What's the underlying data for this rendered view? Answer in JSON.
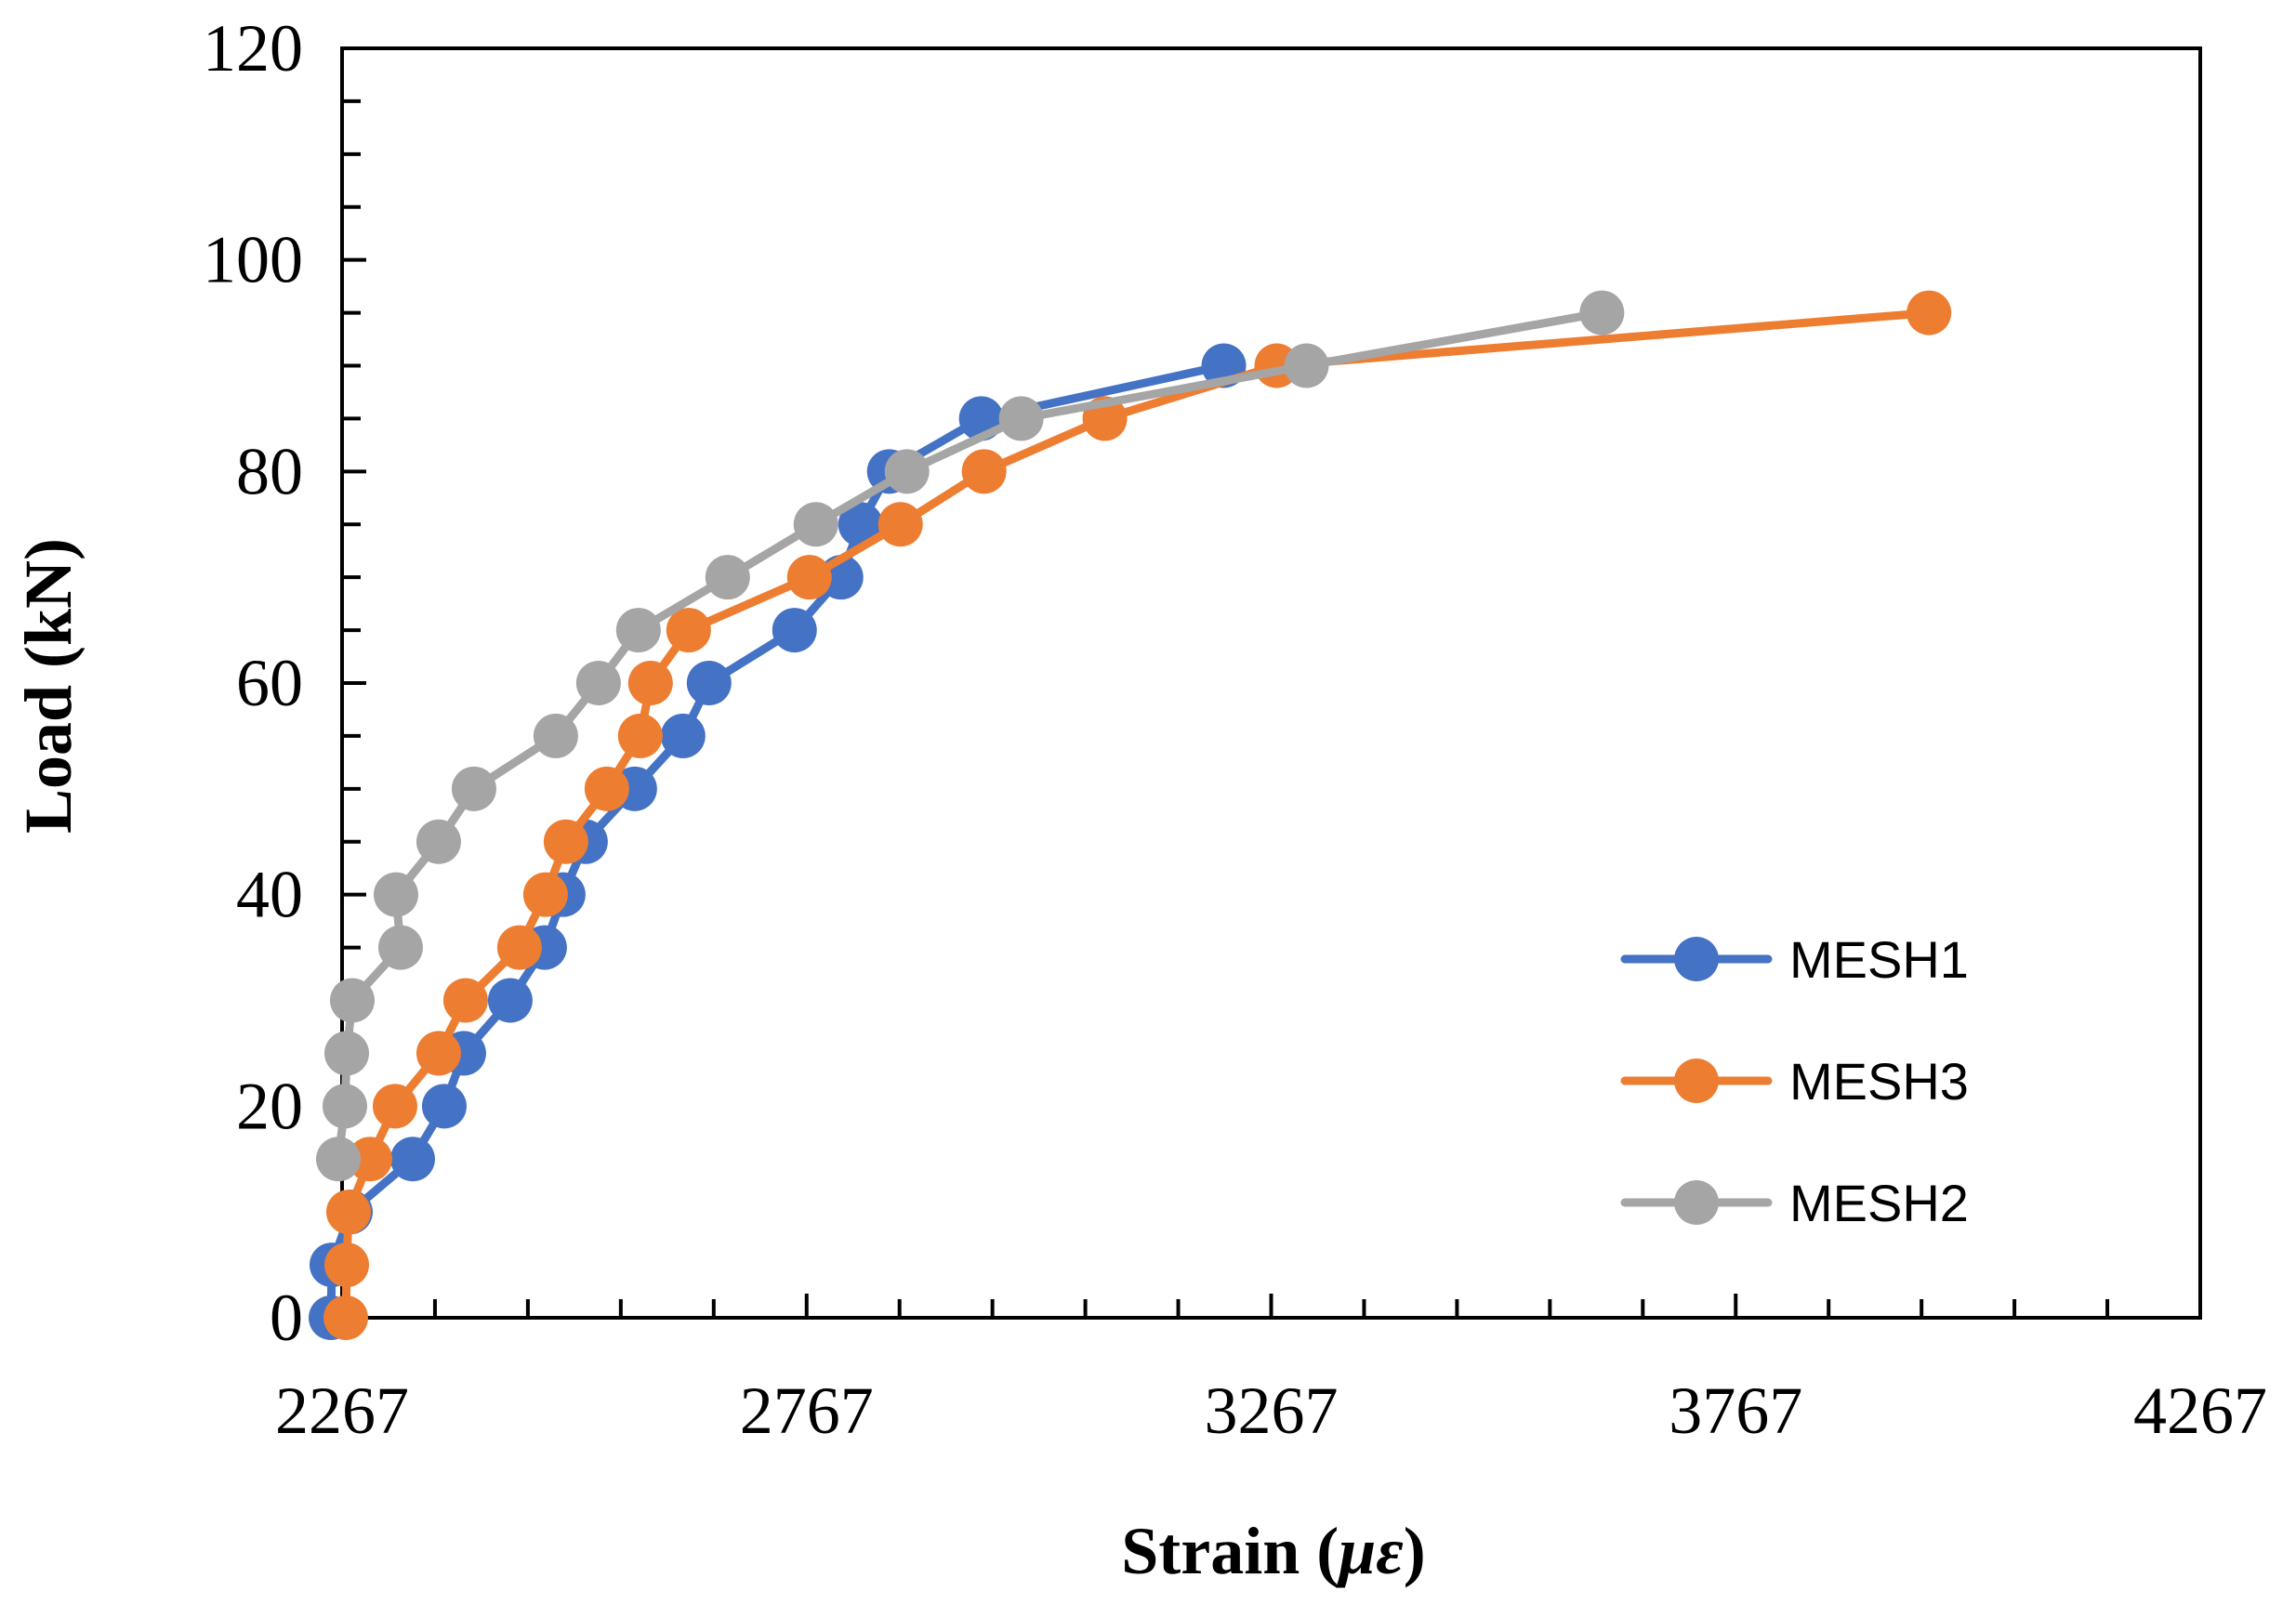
{
  "chart_data": {
    "type": "line",
    "title": "",
    "xlabel": "Strain (",
    "xlabel_symbol": "με",
    "xlabel_close": ")",
    "ylabel": "Load (kN)",
    "xlim": [
      2267,
      4267
    ],
    "ylim": [
      0,
      120
    ],
    "x_ticks": [
      "2267",
      "2767",
      "3267",
      "3767",
      "4267"
    ],
    "x_tick_values": [
      2267,
      2767,
      3267,
      3767,
      4267
    ],
    "y_ticks": [
      "0",
      "20",
      "40",
      "60",
      "80",
      "100",
      "120"
    ],
    "y_tick_values": [
      0,
      20,
      40,
      60,
      80,
      100,
      120
    ],
    "grid": false,
    "legend_position": "bottom-right",
    "series": [
      {
        "name": "MESH1",
        "color": "#4472C4",
        "points": [
          [
            2255,
            0
          ],
          [
            2256,
            5
          ],
          [
            2276,
            10
          ],
          [
            2343,
            15
          ],
          [
            2377,
            20
          ],
          [
            2398,
            25
          ],
          [
            2448,
            30
          ],
          [
            2485,
            35
          ],
          [
            2505,
            40
          ],
          [
            2529,
            45
          ],
          [
            2582,
            50
          ],
          [
            2634,
            55
          ],
          [
            2662,
            60
          ],
          [
            2754,
            65
          ],
          [
            2804,
            70
          ],
          [
            2825,
            75
          ],
          [
            2856,
            80
          ],
          [
            2955,
            85
          ],
          [
            3216,
            90
          ]
        ]
      },
      {
        "name": "MESH3",
        "color": "#ED7D31",
        "points": [
          [
            2271,
            0
          ],
          [
            2272,
            5
          ],
          [
            2274,
            10
          ],
          [
            2297,
            15
          ],
          [
            2324,
            20
          ],
          [
            2371,
            25
          ],
          [
            2400,
            30
          ],
          [
            2458,
            35
          ],
          [
            2486,
            40
          ],
          [
            2508,
            45
          ],
          [
            2552,
            50
          ],
          [
            2588,
            55
          ],
          [
            2599,
            60
          ],
          [
            2640,
            65
          ],
          [
            2770,
            70
          ],
          [
            2868,
            75
          ],
          [
            2958,
            80
          ],
          [
            3088,
            85
          ],
          [
            3273,
            90
          ],
          [
            3975,
            95
          ]
        ]
      },
      {
        "name": "MESH2",
        "color": "#A5A5A5",
        "points": [
          [
            2263,
            15
          ],
          [
            2270,
            20
          ],
          [
            2272,
            25
          ],
          [
            2278,
            30
          ],
          [
            2330,
            35
          ],
          [
            2325,
            40
          ],
          [
            2371,
            45
          ],
          [
            2409,
            50
          ],
          [
            2497,
            55
          ],
          [
            2543,
            60
          ],
          [
            2586,
            65
          ],
          [
            2682,
            70
          ],
          [
            2777,
            75
          ],
          [
            2875,
            80
          ],
          [
            2998,
            85
          ],
          [
            3305,
            90
          ],
          [
            3623,
            95
          ]
        ]
      }
    ]
  }
}
